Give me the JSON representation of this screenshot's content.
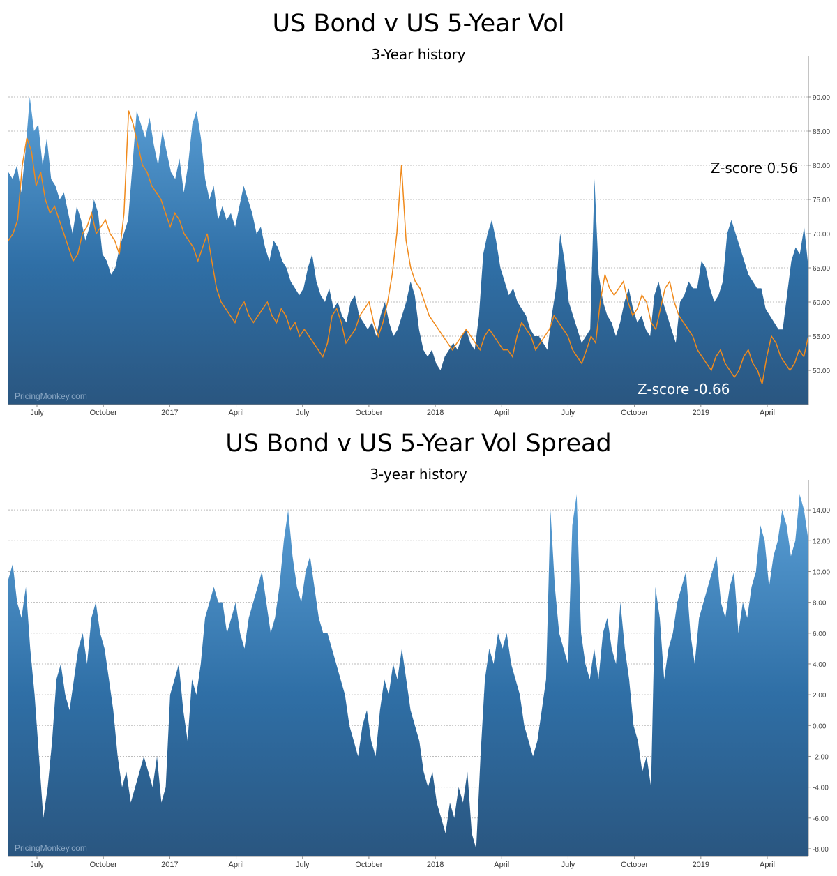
{
  "chart_data": [
    {
      "type": "area",
      "title": "US Bond v US 5-Year Vol",
      "subtitle": "3-Year history",
      "ylim": [
        45,
        95
      ],
      "ytick_labels": [
        "50.00",
        "55.00",
        "60.00",
        "65.00",
        "70.00",
        "75.00",
        "80.00",
        "85.00",
        "90.00"
      ],
      "yticks": [
        50,
        55,
        60,
        65,
        70,
        75,
        80,
        85,
        90
      ],
      "xtick_labels": [
        "July",
        "October",
        "2017",
        "April",
        "July",
        "October",
        "2018",
        "April",
        "July",
        "October",
        "2019",
        "April"
      ],
      "grid": true,
      "watermark": "PricingMonkey.com",
      "annotations": [
        "Z-score 0.56",
        "Z-score -0.66"
      ],
      "series": [
        {
          "color": "#3a7fb5",
          "kind": "area",
          "values": [
            79,
            78,
            80,
            76,
            82,
            90,
            85,
            86,
            80,
            84,
            78,
            77,
            75,
            76,
            73,
            70,
            74,
            72,
            69,
            71,
            75,
            73,
            67,
            66,
            64,
            65,
            68,
            70,
            72,
            80,
            88,
            86,
            84,
            87,
            83,
            80,
            85,
            82,
            79,
            78,
            81,
            76,
            80,
            86,
            88,
            84,
            78,
            75,
            77,
            72,
            74,
            72,
            73,
            71,
            74,
            77,
            75,
            73,
            70,
            71,
            68,
            66,
            69,
            68,
            66,
            65,
            63,
            62,
            61,
            62,
            65,
            67,
            63,
            61,
            60,
            62,
            59,
            60,
            58,
            57,
            60,
            61,
            58,
            57,
            56,
            57,
            55,
            58,
            60,
            57,
            55,
            56,
            58,
            60,
            63,
            61,
            56,
            53,
            52,
            53,
            51,
            50,
            52,
            53,
            54,
            53,
            55,
            56,
            54,
            53,
            58,
            67,
            70,
            72,
            69,
            65,
            63,
            61,
            62,
            60,
            59,
            58,
            56,
            55,
            55,
            54,
            53,
            58,
            62,
            70,
            66,
            60,
            58,
            56,
            54,
            55,
            56,
            78,
            64,
            60,
            58,
            57,
            55,
            57,
            60,
            62,
            59,
            57,
            58,
            56,
            55,
            61,
            63,
            60,
            58,
            56,
            54,
            60,
            61,
            63,
            62,
            62,
            66,
            65,
            62,
            60,
            61,
            63,
            70,
            72,
            70,
            68,
            66,
            64,
            63,
            62,
            62,
            59,
            58,
            57,
            56,
            56,
            61,
            66,
            68,
            67,
            71,
            65
          ]
        },
        {
          "color": "#f08a1c",
          "kind": "line",
          "values": [
            69,
            70,
            72,
            80,
            84,
            82,
            77,
            79,
            75,
            73,
            74,
            72,
            70,
            68,
            66,
            67,
            70,
            71,
            73,
            70,
            71,
            72,
            70,
            69,
            67,
            73,
            88,
            86,
            83,
            80,
            79,
            77,
            76,
            75,
            73,
            71,
            73,
            72,
            70,
            69,
            68,
            66,
            68,
            70,
            66,
            62,
            60,
            59,
            58,
            57,
            59,
            60,
            58,
            57,
            58,
            59,
            60,
            58,
            57,
            59,
            58,
            56,
            57,
            55,
            56,
            55,
            54,
            53,
            52,
            54,
            58,
            59,
            57,
            54,
            55,
            56,
            58,
            59,
            60,
            57,
            55,
            57,
            60,
            64,
            70,
            80,
            69,
            65,
            63,
            62,
            60,
            58,
            57,
            56,
            55,
            54,
            53,
            54,
            55,
            56,
            55,
            54,
            53,
            55,
            56,
            55,
            54,
            53,
            53,
            52,
            55,
            57,
            56,
            55,
            53,
            54,
            55,
            56,
            58,
            57,
            56,
            55,
            53,
            52,
            51,
            53,
            55,
            54,
            60,
            64,
            62,
            61,
            62,
            63,
            60,
            58,
            59,
            61,
            60,
            57,
            56,
            59,
            62,
            63,
            60,
            58,
            57,
            56,
            55,
            53,
            52,
            51,
            50,
            52,
            53,
            51,
            50,
            49,
            50,
            52,
            53,
            51,
            50,
            48,
            52,
            55,
            54,
            52,
            51,
            50,
            51,
            53,
            52,
            55
          ]
        }
      ]
    },
    {
      "type": "area",
      "title": "US Bond v US 5-Year Vol Spread",
      "subtitle": "3-year history",
      "ylim": [
        -8.5,
        15.5
      ],
      "ytick_labels": [
        "-8.00",
        "-6.00",
        "-4.00",
        "-2.00",
        "0.00",
        "2.00",
        "4.00",
        "6.00",
        "8.00",
        "10.00",
        "12.00",
        "14.00"
      ],
      "yticks": [
        -8,
        -6,
        -4,
        -2,
        0,
        2,
        4,
        6,
        8,
        10,
        12,
        14
      ],
      "xtick_labels": [
        "July",
        "October",
        "2017",
        "April",
        "July",
        "October",
        "2018",
        "April",
        "July",
        "October",
        "2019",
        "April"
      ],
      "grid": true,
      "watermark": "PricingMonkey.com",
      "series": [
        {
          "color": "#3a7fb5",
          "kind": "area",
          "values": [
            9.5,
            10.5,
            8,
            7,
            9,
            5,
            2,
            -2,
            -6,
            -4,
            -1,
            3,
            4,
            2,
            1,
            3,
            5,
            6,
            4,
            7,
            8,
            6,
            5,
            3,
            1,
            -2,
            -4,
            -3,
            -5,
            -4,
            -3,
            -2,
            -3,
            -4,
            -2,
            -5,
            -4,
            2,
            3,
            4,
            1,
            -1,
            3,
            2,
            4,
            7,
            8,
            9,
            8,
            8,
            6,
            7,
            8,
            6,
            5,
            7,
            8,
            9,
            10,
            8,
            6,
            7,
            9,
            12,
            14,
            11,
            9,
            8,
            10,
            11,
            9,
            7,
            6,
            6,
            5,
            4,
            3,
            2,
            0,
            -1,
            -2,
            0,
            1,
            -1,
            -2,
            1,
            3,
            2,
            4,
            3,
            5,
            3,
            1,
            0,
            -1,
            -3,
            -4,
            -3,
            -5,
            -6,
            -7,
            -5,
            -6,
            -4,
            -5,
            -3,
            -7,
            -8,
            -2,
            3,
            5,
            4,
            6,
            5,
            6,
            4,
            3,
            2,
            0,
            -1,
            -2,
            -1,
            1,
            3,
            14,
            9,
            6,
            5,
            4,
            13,
            15,
            6,
            4,
            3,
            5,
            3,
            6,
            7,
            5,
            4,
            8,
            5,
            3,
            0,
            -1,
            -3,
            -2,
            -4,
            9,
            7,
            3,
            5,
            6,
            8,
            9,
            10,
            6,
            4,
            7,
            8,
            9,
            10,
            11,
            8,
            7,
            9,
            10,
            6,
            8,
            7,
            9,
            10,
            13,
            12,
            9,
            11,
            12,
            14,
            13,
            11,
            12,
            15,
            14,
            12
          ]
        }
      ]
    }
  ]
}
